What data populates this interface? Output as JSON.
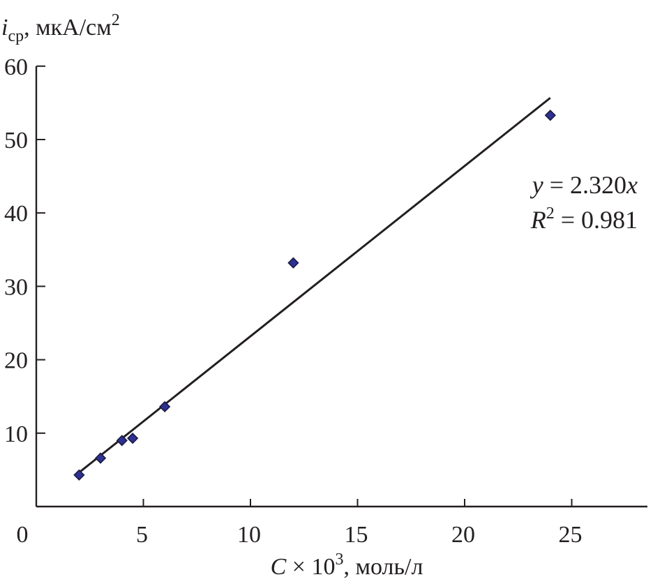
{
  "chart_data": {
    "type": "scatter",
    "ylabel": {
      "main": "i",
      "sub": "ср",
      "unit": ", мкА/см",
      "sup": "2"
    },
    "xlabel": {
      "main": "C",
      "mult": " × 10",
      "sup": "3",
      "unit": ", моль/л"
    },
    "xlim": [
      0,
      28.5
    ],
    "ylim": [
      0,
      60
    ],
    "x_ticks": [
      0,
      5,
      10,
      15,
      20,
      25
    ],
    "x_tick_labels": [
      "0",
      "5",
      "10",
      "15",
      "20",
      "25"
    ],
    "y_ticks": [
      10,
      20,
      30,
      40,
      50,
      60
    ],
    "y_tick_labels": [
      "10",
      "20",
      "30",
      "40",
      "50",
      "60"
    ],
    "grid": false,
    "legend": "none",
    "series": [
      {
        "marker": "diamond",
        "color": "#2e3192",
        "points": [
          {
            "x": 2.0,
            "y": 4.3
          },
          {
            "x": 3.0,
            "y": 6.6
          },
          {
            "x": 4.0,
            "y": 9.0
          },
          {
            "x": 4.5,
            "y": 9.3
          },
          {
            "x": 6.0,
            "y": 13.6
          },
          {
            "x": 12.0,
            "y": 33.2
          },
          {
            "x": 24.0,
            "y": 53.3
          }
        ]
      }
    ],
    "trendline": {
      "slope": 2.32,
      "x_range": [
        2.0,
        24.0
      ],
      "color": "#231f20"
    },
    "annotation": {
      "eq_y": "y",
      "eq_rest": " = 2.320",
      "eq_x": "x",
      "r2_R": "R",
      "r2_sup": "2",
      "r2_rest": " = 0.981"
    }
  }
}
